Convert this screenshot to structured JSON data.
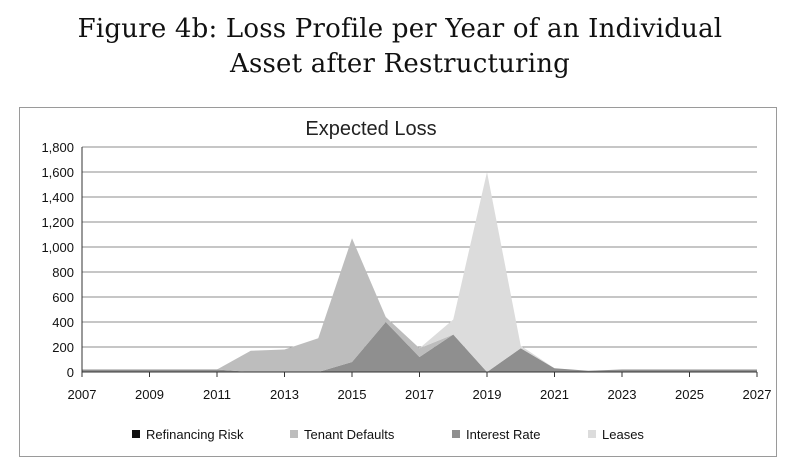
{
  "figure": {
    "title_line1": "Figure 4b: Loss Profile per Year of an Individual",
    "title_line2": "Asset after Restructuring"
  },
  "chart_data": {
    "type": "area",
    "stacked": true,
    "title": "Expected Loss",
    "xlabel": "",
    "ylabel": "",
    "x": [
      2007,
      2008,
      2009,
      2010,
      2011,
      2012,
      2013,
      2014,
      2015,
      2016,
      2017,
      2018,
      2019,
      2020,
      2021,
      2022,
      2023,
      2024,
      2025,
      2026,
      2027
    ],
    "xlim": [
      2007,
      2027
    ],
    "ylim": [
      0,
      1800
    ],
    "x_ticks": [
      "2007",
      "2009",
      "2011",
      "2013",
      "2015",
      "2017",
      "2019",
      "2021",
      "2023",
      "2025",
      "2027"
    ],
    "y_ticks": [
      "0",
      "200",
      "400",
      "600",
      "800",
      "1,000",
      "1,200",
      "1,400",
      "1,600",
      "1,800"
    ],
    "grid": true,
    "legend_position": "bottom",
    "series": [
      {
        "name": "Refinancing Risk",
        "color": "#111111",
        "values": [
          0,
          0,
          0,
          0,
          0,
          0,
          0,
          0,
          0,
          0,
          0,
          0,
          0,
          0,
          0,
          0,
          0,
          0,
          0,
          0,
          0
        ]
      },
      {
        "name": "Interest Rate",
        "color": "#8f8f8f",
        "values": [
          20,
          20,
          20,
          20,
          20,
          0,
          0,
          0,
          80,
          400,
          120,
          300,
          0,
          190,
          30,
          10,
          20,
          20,
          20,
          20,
          20
        ]
      },
      {
        "name": "Tenant Defaults",
        "color": "#bdbdbd",
        "values": [
          0,
          0,
          0,
          0,
          0,
          170,
          180,
          270,
          990,
          40,
          70,
          0,
          0,
          0,
          0,
          0,
          0,
          0,
          0,
          0,
          0
        ]
      },
      {
        "name": "Leases",
        "color": "#dcdcdc",
        "values": [
          0,
          0,
          0,
          0,
          0,
          0,
          0,
          0,
          0,
          0,
          0,
          120,
          1600,
          20,
          0,
          0,
          0,
          0,
          0,
          0,
          0
        ]
      }
    ],
    "legend_order": [
      "Refinancing Risk",
      "Tenant Defaults",
      "Interest Rate",
      "Leases"
    ]
  }
}
